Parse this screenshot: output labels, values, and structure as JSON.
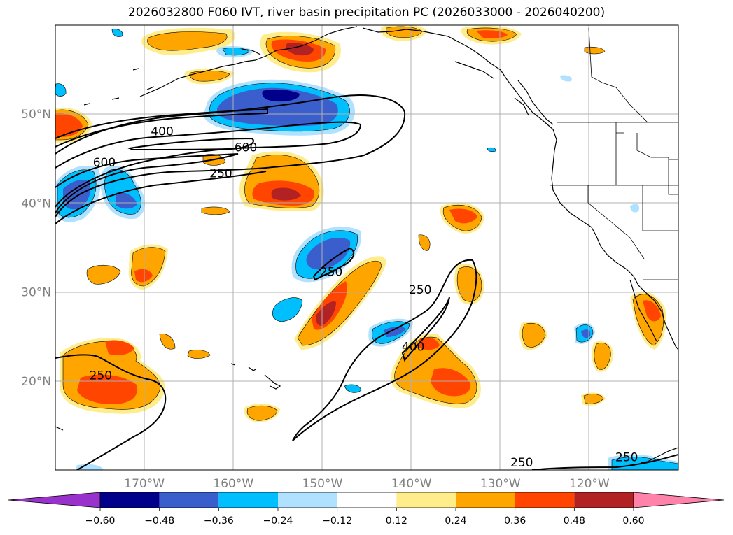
{
  "title": "2026032800 F060 IVT, river basin precipitation PC (2026033000 - 2026040200)",
  "map": {
    "lon_range": [
      -180,
      -110
    ],
    "lat_range": [
      10,
      60
    ],
    "lat_ticks": [
      {
        "value": 50,
        "label": "50°N"
      },
      {
        "value": 40,
        "label": "40°N"
      },
      {
        "value": 30,
        "label": "30°N"
      },
      {
        "value": 20,
        "label": "20°N"
      }
    ],
    "lon_ticks": [
      {
        "value": -170,
        "label": "170°W"
      },
      {
        "value": -160,
        "label": "160°W"
      },
      {
        "value": -150,
        "label": "150°W"
      },
      {
        "value": -140,
        "label": "140°W"
      },
      {
        "value": -130,
        "label": "130°W"
      },
      {
        "value": -120,
        "label": "120°W"
      }
    ],
    "grid": true,
    "ivt_contour_labels": [
      {
        "text": "400",
        "lon": -168,
        "lat": 47.6
      },
      {
        "text": "600",
        "lon": -174.5,
        "lat": 44.1
      },
      {
        "text": "600",
        "lon": -158.6,
        "lat": 45.8
      },
      {
        "text": "250",
        "lon": -161.4,
        "lat": 42.9
      },
      {
        "text": "250",
        "lon": -149,
        "lat": 31.8
      },
      {
        "text": "250",
        "lon": -139,
        "lat": 29.8
      },
      {
        "text": "400",
        "lon": -139.8,
        "lat": 23.4
      },
      {
        "text": "250",
        "lon": -174.9,
        "lat": 20.2
      },
      {
        "text": "250",
        "lon": -127.6,
        "lat": 10.4
      },
      {
        "text": "250",
        "lon": -115.8,
        "lat": 11.0
      }
    ]
  },
  "colorbar": {
    "tick_labels": [
      "−0.60",
      "−0.48",
      "−0.36",
      "−0.24",
      "−0.12",
      "0.12",
      "0.24",
      "0.36",
      "0.48",
      "0.60"
    ],
    "colors": [
      "#9932CC",
      "#00008B",
      "#3A5FCD",
      "#00BFFF",
      "#B0E2FF",
      "#FFFFFF",
      "#FFEC8B",
      "#FFA500",
      "#FF4500",
      "#B22222",
      "#FF82AB"
    ]
  },
  "colors": {
    "grid": "#b0b0b0",
    "coast": "#000000",
    "contour": "#000000"
  }
}
